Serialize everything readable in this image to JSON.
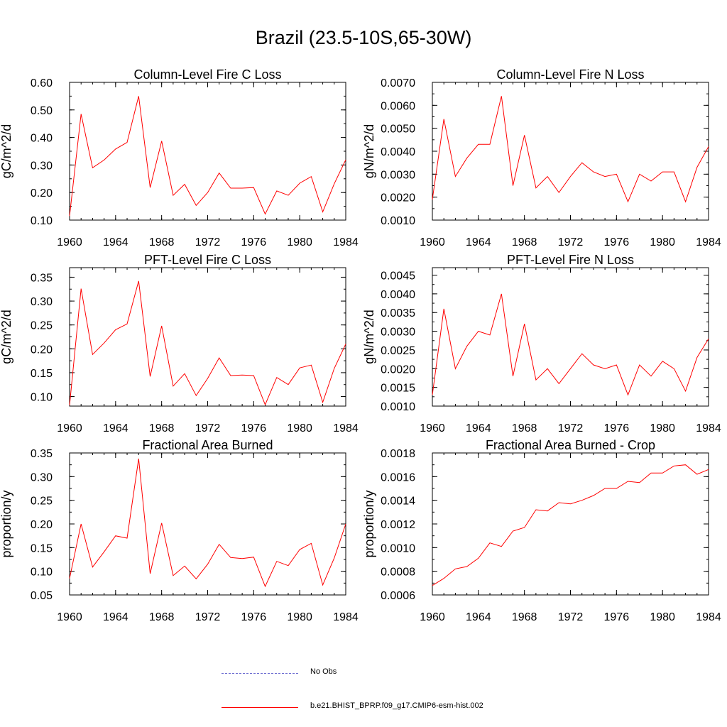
{
  "page_title": "Brazil (23.5-10S,65-30W)",
  "colors": {
    "model": "#ff0000",
    "obs": "#6a6ad0",
    "axis": "#000000"
  },
  "legend": {
    "obs_label": "No Obs",
    "model_label": "b.e21.BHIST_BPRP.f09_g17.CMIP6-esm-hist.002"
  },
  "chart_data": [
    {
      "type": "line",
      "title": "Column-Level Fire C Loss",
      "xlabel": "",
      "ylabel": "gC/m^2/d",
      "xlim": [
        1960,
        1984
      ],
      "ylim": [
        0.1,
        0.6
      ],
      "xticks": [
        1960,
        1964,
        1968,
        1972,
        1976,
        1980,
        1984
      ],
      "xtick_labels": [
        "1960",
        "1964",
        "1968",
        "1972",
        "1976",
        "1980",
        "1984"
      ],
      "yticks": [
        0.1,
        0.2,
        0.3,
        0.4,
        0.5,
        0.6
      ],
      "ytick_labels": [
        "0.10",
        "0.20",
        "0.30",
        "0.40",
        "0.50",
        "0.60"
      ],
      "x": [
        1960,
        1961,
        1962,
        1963,
        1964,
        1965,
        1966,
        1967,
        1968,
        1969,
        1970,
        1971,
        1972,
        1973,
        1974,
        1975,
        1976,
        1977,
        1978,
        1979,
        1980,
        1981,
        1982,
        1983,
        1984
      ],
      "series": [
        {
          "name": "b.e21.BHIST_BPRP.f09_g17.CMIP6-esm-hist.002",
          "values": [
            0.115,
            0.485,
            0.29,
            0.318,
            0.358,
            0.382,
            0.55,
            0.218,
            0.387,
            0.19,
            0.23,
            0.153,
            0.2,
            0.271,
            0.216,
            0.216,
            0.218,
            0.122,
            0.206,
            0.19,
            0.234,
            0.258,
            0.13,
            0.232,
            0.319
          ]
        }
      ]
    },
    {
      "type": "line",
      "title": "Column-Level Fire N Loss",
      "xlabel": "",
      "ylabel": "gN/m^2/d",
      "xlim": [
        1960,
        1984
      ],
      "ylim": [
        0.001,
        0.007
      ],
      "xticks": [
        1960,
        1964,
        1968,
        1972,
        1976,
        1980,
        1984
      ],
      "xtick_labels": [
        "1960",
        "1964",
        "1968",
        "1972",
        "1976",
        "1980",
        "1984"
      ],
      "yticks": [
        0.001,
        0.002,
        0.003,
        0.004,
        0.005,
        0.006,
        0.007
      ],
      "ytick_labels": [
        "0.0010",
        "0.0020",
        "0.0030",
        "0.0040",
        "0.0050",
        "0.0060",
        "0.0070"
      ],
      "x": [
        1960,
        1961,
        1962,
        1963,
        1964,
        1965,
        1966,
        1967,
        1968,
        1969,
        1970,
        1971,
        1972,
        1973,
        1974,
        1975,
        1976,
        1977,
        1978,
        1979,
        1980,
        1981,
        1982,
        1983,
        1984
      ],
      "series": [
        {
          "name": "b.e21.BHIST_BPRP.f09_g17.CMIP6-esm-hist.002",
          "values": [
            0.0019,
            0.0054,
            0.0029,
            0.0037,
            0.0043,
            0.0043,
            0.0064,
            0.0025,
            0.0047,
            0.0024,
            0.0029,
            0.0022,
            0.0029,
            0.0035,
            0.0031,
            0.0029,
            0.003,
            0.0018,
            0.003,
            0.0027,
            0.0031,
            0.0031,
            0.0018,
            0.0033,
            0.0042
          ]
        }
      ]
    },
    {
      "type": "line",
      "title": "PFT-Level Fire C Loss",
      "xlabel": "",
      "ylabel": "gC/m^2/d",
      "xlim": [
        1960,
        1984
      ],
      "ylim": [
        0.08,
        0.37
      ],
      "xticks": [
        1960,
        1964,
        1968,
        1972,
        1976,
        1980,
        1984
      ],
      "xtick_labels": [
        "1960",
        "1964",
        "1968",
        "1972",
        "1976",
        "1980",
        "1984"
      ],
      "yticks": [
        0.1,
        0.15,
        0.2,
        0.25,
        0.3,
        0.35
      ],
      "ytick_labels": [
        "0.10",
        "0.15",
        "0.20",
        "0.25",
        "0.30",
        "0.35"
      ],
      "x": [
        1960,
        1961,
        1962,
        1963,
        1964,
        1965,
        1966,
        1967,
        1968,
        1969,
        1970,
        1971,
        1972,
        1973,
        1974,
        1975,
        1976,
        1977,
        1978,
        1979,
        1980,
        1981,
        1982,
        1983,
        1984
      ],
      "series": [
        {
          "name": "b.e21.BHIST_BPRP.f09_g17.CMIP6-esm-hist.002",
          "values": [
            0.082,
            0.326,
            0.188,
            0.212,
            0.24,
            0.252,
            0.342,
            0.142,
            0.248,
            0.122,
            0.148,
            0.102,
            0.138,
            0.181,
            0.144,
            0.145,
            0.144,
            0.083,
            0.14,
            0.125,
            0.16,
            0.166,
            0.088,
            0.159,
            0.21
          ]
        }
      ]
    },
    {
      "type": "line",
      "title": "PFT-Level Fire N Loss",
      "xlabel": "",
      "ylabel": "gN/m^2/d",
      "xlim": [
        1960,
        1984
      ],
      "ylim": [
        0.001,
        0.0047
      ],
      "xticks": [
        1960,
        1964,
        1968,
        1972,
        1976,
        1980,
        1984
      ],
      "xtick_labels": [
        "1960",
        "1964",
        "1968",
        "1972",
        "1976",
        "1980",
        "1984"
      ],
      "yticks": [
        0.001,
        0.0015,
        0.002,
        0.0025,
        0.003,
        0.0035,
        0.004,
        0.0045
      ],
      "ytick_labels": [
        "0.0010",
        "0.0015",
        "0.0020",
        "0.0025",
        "0.0030",
        "0.0035",
        "0.0040",
        "0.0045"
      ],
      "x": [
        1960,
        1961,
        1962,
        1963,
        1964,
        1965,
        1966,
        1967,
        1968,
        1969,
        1970,
        1971,
        1972,
        1973,
        1974,
        1975,
        1976,
        1977,
        1978,
        1979,
        1980,
        1981,
        1982,
        1983,
        1984
      ],
      "series": [
        {
          "name": "b.e21.BHIST_BPRP.f09_g17.CMIP6-esm-hist.002",
          "values": [
            0.0013,
            0.0036,
            0.002,
            0.0026,
            0.003,
            0.0029,
            0.004,
            0.0018,
            0.0032,
            0.0017,
            0.002,
            0.0016,
            0.002,
            0.0024,
            0.0021,
            0.002,
            0.0021,
            0.0013,
            0.0021,
            0.0018,
            0.0022,
            0.002,
            0.0014,
            0.0023,
            0.0028
          ]
        }
      ]
    },
    {
      "type": "line",
      "title": "Fractional Area Burned",
      "xlabel": "",
      "ylabel": "proportion/y",
      "xlim": [
        1960,
        1984
      ],
      "ylim": [
        0.05,
        0.35
      ],
      "xticks": [
        1960,
        1964,
        1968,
        1972,
        1976,
        1980,
        1984
      ],
      "xtick_labels": [
        "1960",
        "1964",
        "1968",
        "1972",
        "1976",
        "1980",
        "1984"
      ],
      "yticks": [
        0.05,
        0.1,
        0.15,
        0.2,
        0.25,
        0.3,
        0.35
      ],
      "ytick_labels": [
        "0.05",
        "0.10",
        "0.15",
        "0.20",
        "0.25",
        "0.30",
        "0.35"
      ],
      "x": [
        1960,
        1961,
        1962,
        1963,
        1964,
        1965,
        1966,
        1967,
        1968,
        1969,
        1970,
        1971,
        1972,
        1973,
        1974,
        1975,
        1976,
        1977,
        1978,
        1979,
        1980,
        1981,
        1982,
        1983,
        1984
      ],
      "series": [
        {
          "name": "b.e21.BHIST_BPRP.f09_g17.CMIP6-esm-hist.002",
          "values": [
            0.085,
            0.2,
            0.109,
            0.141,
            0.175,
            0.17,
            0.338,
            0.095,
            0.202,
            0.091,
            0.111,
            0.084,
            0.115,
            0.157,
            0.129,
            0.127,
            0.13,
            0.068,
            0.121,
            0.112,
            0.146,
            0.159,
            0.071,
            0.128,
            0.2
          ]
        }
      ]
    },
    {
      "type": "line",
      "title": "Fractional Area Burned - Crop",
      "xlabel": "",
      "ylabel": "proportion/y",
      "xlim": [
        1960,
        1984
      ],
      "ylim": [
        0.0006,
        0.0018
      ],
      "xticks": [
        1960,
        1964,
        1968,
        1972,
        1976,
        1980,
        1984
      ],
      "xtick_labels": [
        "1960",
        "1964",
        "1968",
        "1972",
        "1976",
        "1980",
        "1984"
      ],
      "yticks": [
        0.0006,
        0.0008,
        0.001,
        0.0012,
        0.0014,
        0.0016,
        0.0018
      ],
      "ytick_labels": [
        "0.0006",
        "0.0008",
        "0.0010",
        "0.0012",
        "0.0014",
        "0.0016",
        "0.0018"
      ],
      "x": [
        1960,
        1961,
        1962,
        1963,
        1964,
        1965,
        1966,
        1967,
        1968,
        1969,
        1970,
        1971,
        1972,
        1973,
        1974,
        1975,
        1976,
        1977,
        1978,
        1979,
        1980,
        1981,
        1982,
        1983,
        1984
      ],
      "series": [
        {
          "name": "b.e21.BHIST_BPRP.f09_g17.CMIP6-esm-hist.002",
          "values": [
            0.00068,
            0.00074,
            0.00082,
            0.00084,
            0.00091,
            0.00104,
            0.00101,
            0.00114,
            0.00117,
            0.00132,
            0.00131,
            0.00138,
            0.00137,
            0.0014,
            0.00144,
            0.0015,
            0.0015,
            0.00156,
            0.00155,
            0.00163,
            0.00163,
            0.00169,
            0.0017,
            0.00162,
            0.00166
          ]
        }
      ]
    }
  ]
}
